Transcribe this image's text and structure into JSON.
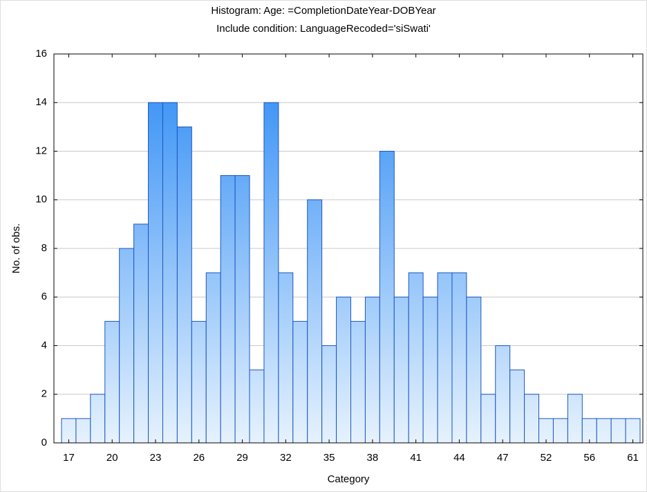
{
  "chart_data": {
    "type": "bar",
    "title": "Histogram: Age: =CompletionDateYear-DOBYear",
    "subtitle": "Include condition: LanguageRecoded='siSwati'",
    "xlabel": "Category",
    "ylabel": "No. of obs.",
    "categories": [
      "17",
      null,
      null,
      "20",
      null,
      null,
      "23",
      null,
      null,
      "26",
      null,
      null,
      "29",
      null,
      null,
      "32",
      null,
      null,
      "35",
      null,
      null,
      "38",
      null,
      null,
      "41",
      null,
      null,
      "44",
      null,
      null,
      "47",
      null,
      null,
      "52",
      null,
      null,
      "56",
      null,
      null,
      "61"
    ],
    "values": [
      1,
      1,
      2,
      5,
      8,
      9,
      14,
      14,
      13,
      5,
      7,
      11,
      11,
      3,
      14,
      7,
      5,
      10,
      4,
      6,
      5,
      6,
      12,
      6,
      7,
      6,
      7,
      7,
      6,
      2,
      4,
      3,
      2,
      1,
      1,
      2,
      1,
      1,
      1,
      1
    ],
    "color": "#2b8af5",
    "edge_color": "#1c55c0",
    "ylim": [
      0,
      16
    ],
    "yticks": [
      0,
      2,
      4,
      6,
      8,
      10,
      12,
      14,
      16
    ],
    "grid": true
  }
}
